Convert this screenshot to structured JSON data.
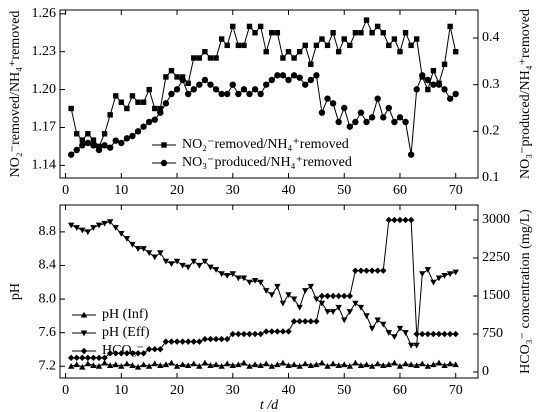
{
  "chart_data": [
    {
      "type": "line",
      "y_label": "NO₂⁻removed/NH₄⁺removed",
      "y2_label": "NO₃⁻produced/NH₄⁺removed",
      "x": [
        1,
        2,
        3,
        4,
        5,
        6,
        7,
        8,
        9,
        10,
        11,
        12,
        13,
        14,
        15,
        16,
        17,
        18,
        19,
        20,
        21,
        22,
        23,
        24,
        25,
        26,
        27,
        28,
        29,
        30,
        31,
        32,
        33,
        34,
        35,
        36,
        37,
        38,
        39,
        40,
        41,
        42,
        43,
        44,
        45,
        46,
        47,
        48,
        49,
        50,
        51,
        52,
        53,
        54,
        55,
        56,
        57,
        58,
        59,
        60,
        61,
        62,
        63,
        64,
        65,
        66,
        67,
        68,
        69,
        70
      ],
      "xlim": [
        -1,
        74
      ],
      "xticks": [
        0,
        10,
        20,
        30,
        40,
        50,
        60,
        70
      ],
      "ylim": [
        1.13,
        1.263
      ],
      "yticks": [
        {
          "value": 1.14,
          "label": "1.14"
        },
        1.17,
        {
          "value": 1.2,
          "label": "1.20"
        },
        1.23,
        1.26
      ],
      "y2lim": [
        0.1,
        0.46
      ],
      "y2ticks": [
        0.1,
        0.2,
        0.3,
        0.4
      ],
      "legend": "lower center",
      "series": [
        {
          "name": "NO₂⁻removed/NH₄⁺removed",
          "color": "#000000",
          "marker": "square",
          "values": [
            1.185,
            1.165,
            1.16,
            1.165,
            1.16,
            1.155,
            1.165,
            1.18,
            1.195,
            1.19,
            1.185,
            1.195,
            1.19,
            1.19,
            1.2,
            1.185,
            1.185,
            1.21,
            1.215,
            1.21,
            1.21,
            1.205,
            1.225,
            1.225,
            1.23,
            1.225,
            1.225,
            1.24,
            1.235,
            1.25,
            1.235,
            1.235,
            1.25,
            1.245,
            1.25,
            1.23,
            1.245,
            1.245,
            1.225,
            1.23,
            1.225,
            1.23,
            1.235,
            1.22,
            1.235,
            1.24,
            1.235,
            1.245,
            1.23,
            1.24,
            1.235,
            1.245,
            1.245,
            1.255,
            1.245,
            1.25,
            1.245,
            1.235,
            1.24,
            1.23,
            1.245,
            1.235,
            1.24,
            1.21,
            1.2,
            1.215,
            1.205,
            1.22,
            1.25,
            1.23
          ]
        },
        {
          "name": "NO₃⁻produced/NH₄⁺removed",
          "color": "#000000",
          "marker": "circle",
          "axis": "y2",
          "values": [
            0.15,
            0.16,
            0.17,
            0.175,
            0.17,
            0.16,
            0.17,
            0.165,
            0.18,
            0.175,
            0.185,
            0.19,
            0.2,
            0.21,
            0.22,
            0.225,
            0.24,
            0.26,
            0.28,
            0.29,
            0.31,
            0.28,
            0.29,
            0.3,
            0.31,
            0.3,
            0.29,
            0.28,
            0.28,
            0.3,
            0.28,
            0.29,
            0.28,
            0.29,
            0.28,
            0.3,
            0.31,
            0.32,
            0.32,
            0.31,
            0.32,
            0.315,
            0.3,
            0.31,
            0.32,
            0.24,
            0.27,
            0.26,
            0.22,
            0.25,
            0.21,
            0.22,
            0.24,
            0.22,
            0.23,
            0.27,
            0.23,
            0.25,
            0.22,
            0.23,
            0.22,
            0.15,
            0.29,
            0.32,
            0.31,
            0.3,
            0.3,
            0.29,
            0.27,
            0.28
          ]
        }
      ]
    },
    {
      "type": "line",
      "y_label": "pH",
      "y2_label": "HCO₃⁻ concentration (mg/L)",
      "x_label": "t /d",
      "x": [
        1,
        2,
        3,
        4,
        5,
        6,
        7,
        8,
        9,
        10,
        11,
        12,
        13,
        14,
        15,
        16,
        17,
        18,
        19,
        20,
        21,
        22,
        23,
        24,
        25,
        26,
        27,
        28,
        29,
        30,
        31,
        32,
        33,
        34,
        35,
        36,
        37,
        38,
        39,
        40,
        41,
        42,
        43,
        44,
        45,
        46,
        47,
        48,
        49,
        50,
        51,
        52,
        53,
        54,
        55,
        56,
        57,
        58,
        59,
        60,
        61,
        62,
        63,
        64,
        65,
        66,
        67,
        68,
        69,
        70
      ],
      "xlim": [
        -1,
        74
      ],
      "xticks": [
        0,
        10,
        20,
        30,
        40,
        50,
        60,
        70
      ],
      "ylim": [
        7.06,
        9.12
      ],
      "yticks": [
        7.2,
        7.6,
        {
          "value": 8,
          "label": "8.0"
        },
        8.4,
        8.8
      ],
      "y2lim": [
        -118,
        3296
      ],
      "y2ticks": [
        0,
        750,
        1500,
        2250,
        3000
      ],
      "legend": "lower left",
      "series": [
        {
          "name": "pH (Inf)",
          "color": "#000000",
          "marker": "triangle-up",
          "values": [
            7.2,
            7.22,
            7.19,
            7.23,
            7.21,
            7.2,
            7.24,
            7.21,
            7.22,
            7.2,
            7.23,
            7.21,
            7.19,
            7.22,
            7.2,
            7.23,
            7.21,
            7.22,
            7.24,
            7.2,
            7.22,
            7.21,
            7.23,
            7.2,
            7.24,
            7.21,
            7.22,
            7.2,
            7.23,
            7.21,
            7.22,
            7.24,
            7.2,
            7.22,
            7.21,
            7.23,
            7.2,
            7.22,
            7.24,
            7.21,
            7.22,
            7.2,
            7.23,
            7.21,
            7.22,
            7.24,
            7.2,
            7.23,
            7.21,
            7.22,
            7.2,
            7.24,
            7.21,
            7.22,
            7.2,
            7.23,
            7.21,
            7.22,
            7.24,
            7.2,
            7.23,
            7.22,
            7.21,
            7.23,
            7.2,
            7.22,
            7.24,
            7.21,
            7.23,
            7.22
          ]
        },
        {
          "name": "pH (Eff)",
          "color": "#000000",
          "marker": "triangle-down",
          "values": [
            8.88,
            8.85,
            8.82,
            8.8,
            8.85,
            8.88,
            8.9,
            8.92,
            8.85,
            8.78,
            8.72,
            8.65,
            8.6,
            8.6,
            8.55,
            8.5,
            8.55,
            8.45,
            8.42,
            8.45,
            8.4,
            8.38,
            8.45,
            8.4,
            8.45,
            8.38,
            8.35,
            8.3,
            8.28,
            8.3,
            8.25,
            8.25,
            8.2,
            8.22,
            8.2,
            8.1,
            8.05,
            8.15,
            7.95,
            8.05,
            8.0,
            7.9,
            8.1,
            8.15,
            8.0,
            7.95,
            7.85,
            7.85,
            7.9,
            7.75,
            7.85,
            7.95,
            7.9,
            7.8,
            7.65,
            7.75,
            7.7,
            7.6,
            7.55,
            7.65,
            7.6,
            7.45,
            7.45,
            8.3,
            8.35,
            8.2,
            8.25,
            8.28,
            8.3,
            8.32
          ]
        },
        {
          "name": "HCO₃⁻",
          "color": "#000000",
          "marker": "diamond",
          "axis": "y2",
          "values": [
            280,
            280,
            280,
            280,
            280,
            280,
            280,
            370,
            370,
            370,
            370,
            370,
            370,
            370,
            450,
            450,
            450,
            600,
            600,
            600,
            600,
            600,
            600,
            600,
            650,
            650,
            650,
            650,
            650,
            750,
            750,
            750,
            750,
            750,
            750,
            800,
            800,
            800,
            800,
            800,
            1000,
            1000,
            1000,
            1000,
            1000,
            1500,
            1500,
            1500,
            1500,
            1500,
            1500,
            2000,
            2000,
            2000,
            2000,
            2000,
            2000,
            3000,
            3000,
            3000,
            3000,
            3000,
            750,
            750,
            750,
            750,
            750,
            750,
            750,
            750
          ]
        }
      ]
    }
  ]
}
